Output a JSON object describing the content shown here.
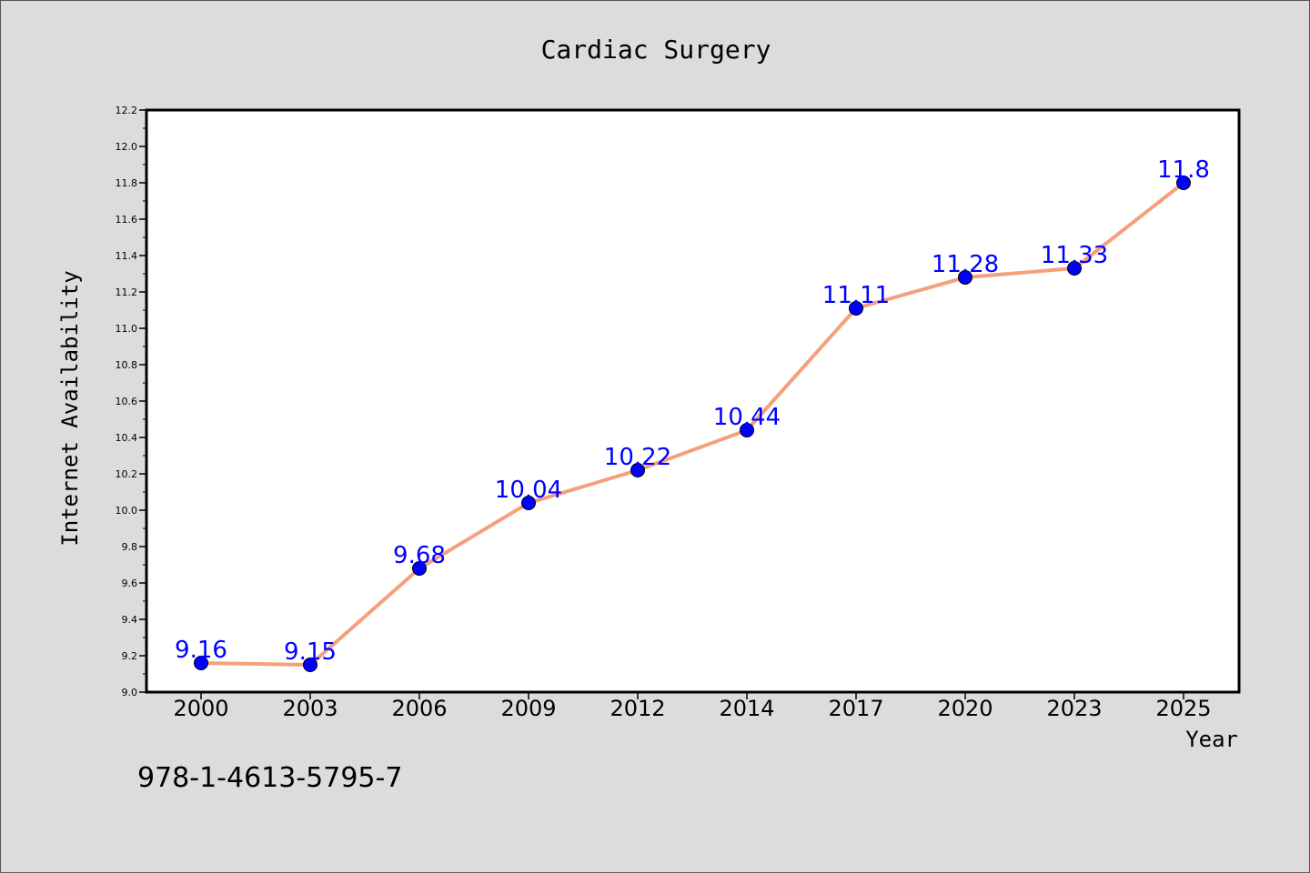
{
  "chart_data": {
    "type": "line",
    "title": "Cardiac Surgery",
    "xlabel": "Year",
    "ylabel": "Internet Availability",
    "categories": [
      "2000",
      "2003",
      "2006",
      "2009",
      "2012",
      "2014",
      "2017",
      "2020",
      "2023",
      "2025"
    ],
    "series": [
      {
        "values": [
          9.16,
          9.15,
          9.68,
          10.04,
          10.22,
          10.44,
          11.11,
          11.28,
          11.33,
          11.8
        ],
        "labels": [
          "9.16",
          "9.15",
          "9.68",
          "10.04",
          "10.22",
          "10.44",
          "11.11",
          "11.28",
          "11.33",
          "11.8"
        ]
      }
    ],
    "ylim": [
      9.0,
      12.2
    ],
    "yticks": [
      "9.0",
      "9.2",
      "9.4",
      "9.6",
      "9.8",
      "10.0",
      "10.2",
      "10.4",
      "10.6",
      "10.8",
      "11.0",
      "11.2",
      "11.4",
      "11.6",
      "11.8",
      "12.0",
      "12.2"
    ],
    "grid": false,
    "legend": "none",
    "colors": {
      "line": "#f4a07c",
      "marker": "#0000ff",
      "data_label": "#0000ff",
      "background": "#dcdcdc",
      "plot_background": "#ffffff"
    }
  },
  "footer": {
    "isbn": "978-1-4613-5795-7"
  }
}
